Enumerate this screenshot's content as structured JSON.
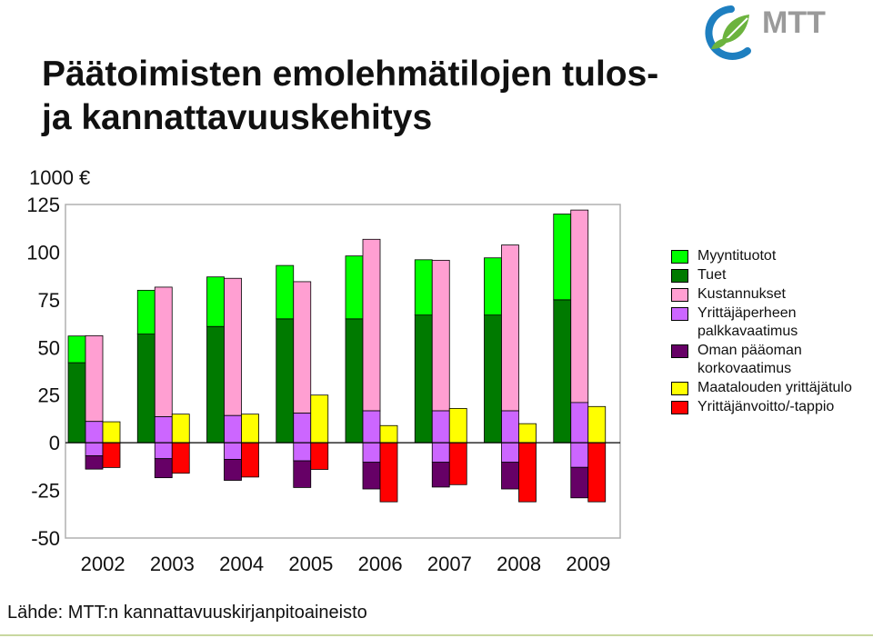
{
  "title": "Päätoimisten emolehmätilojen tulos- ja kannattavuuskehitys",
  "logo": {
    "text": "MTT",
    "icon": "mtt-leaf-logo-icon",
    "colors": [
      "#1e7fc0",
      "#6cb33e",
      "#9a9a9a"
    ]
  },
  "unit_label": "1000 €",
  "source": "Lähde: MTT:n kannattavuuskirjanpitoaineisto",
  "chart_data": {
    "type": "bar",
    "stacked": true,
    "categories": [
      "2002",
      "2003",
      "2004",
      "2005",
      "2006",
      "2007",
      "2008",
      "2009"
    ],
    "ylim": [
      -50,
      125
    ],
    "yticks": [
      -50,
      -25,
      0,
      25,
      50,
      75,
      100,
      125
    ],
    "grid": false,
    "legend_position": "right",
    "revenue_bar": {
      "series": [
        {
          "name": "Myyntituotot",
          "color": "#00ff00",
          "values": [
            14,
            23,
            26,
            28,
            33,
            29,
            30,
            45
          ]
        },
        {
          "name": "Tuet",
          "color": "#007a00",
          "values": [
            42,
            57,
            61,
            65,
            65,
            67,
            67,
            75
          ]
        }
      ]
    },
    "cost_bar": {
      "series": [
        {
          "name": "Kustannukset",
          "color": "#ff9fd2",
          "values": [
            45,
            68,
            72,
            69,
            90,
            79,
            87,
            101
          ]
        },
        {
          "name": "Yrittäjäperheen palkkavaatimus",
          "color": "#cc66ff",
          "values": [
            18,
            22,
            23,
            25,
            27,
            27,
            27,
            34
          ]
        },
        {
          "name": "Oman pääoman korkovaatimus",
          "color": "#660066",
          "values": [
            7,
            10,
            11,
            14,
            14,
            13,
            14,
            16
          ]
        }
      ]
    },
    "result_bar": {
      "series": [
        {
          "name": "Maataloudenyrittäjätulo",
          "color": "#ffff00",
          "values": [
            11,
            15,
            15,
            25,
            9,
            18,
            10,
            19
          ]
        },
        {
          "name": "Yrittäjänvoitto/-tappio",
          "color": "#ff0000",
          "values": [
            -13,
            -16,
            -18,
            -14,
            -31,
            -22,
            -31,
            -31
          ]
        }
      ]
    }
  },
  "legend": [
    {
      "label": "Myyntituotot",
      "color": "#00ff00"
    },
    {
      "label": "Tuet",
      "color": "#007a00"
    },
    {
      "label": "Kustannukset",
      "color": "#ff9fd2"
    },
    {
      "label": "Yrittäjäperheen palkkavaatimus",
      "color": "#cc66ff"
    },
    {
      "label": "Oman pääoman korkovaatimus",
      "color": "#660066"
    },
    {
      "label": "Maatalouden yrittäjätulo",
      "color": "#ffff00"
    },
    {
      "label": "Yrittäjänvoitto/-tappio",
      "color": "#ff0000"
    }
  ]
}
